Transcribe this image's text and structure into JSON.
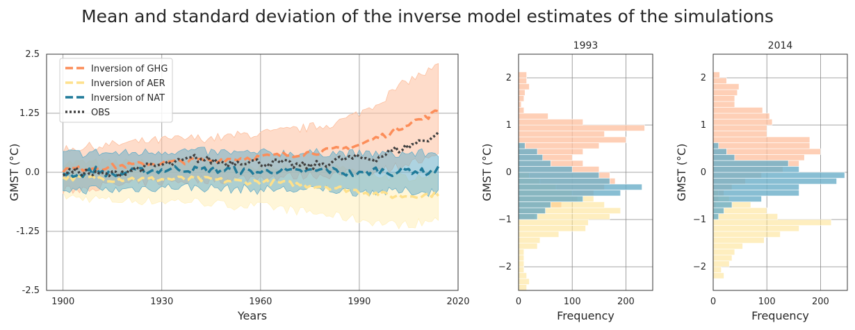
{
  "suptitle": "Mean and standard deviation of the inverse model estimates of the simulations",
  "colors": {
    "ghg": "#fc8d59",
    "ghg_band": "#fdbf9e",
    "aer": "#fee08b",
    "aer_band": "#fff0c0",
    "nat": "#1f7a99",
    "nat_band": "#6aaec8",
    "obs": "#404040",
    "grid": "#888888"
  },
  "chart_data": [
    {
      "type": "line",
      "title": "",
      "xlabel": "Years",
      "ylabel": "GMST (°C)",
      "xlim": [
        1895,
        2020
      ],
      "ylim": [
        -2.5,
        2.5
      ],
      "xticks": [
        1900,
        1930,
        1960,
        1990,
        2020
      ],
      "yticks": [
        2.5,
        1.25,
        0.0,
        -1.25,
        -2.5
      ],
      "ytick_labels": [
        "2.5",
        "1.25",
        "0.0",
        "-1.25",
        "-2.5"
      ],
      "grid": true,
      "legend_position": "top-left",
      "x": [
        1900,
        1905,
        1910,
        1915,
        1920,
        1925,
        1930,
        1935,
        1940,
        1945,
        1950,
        1955,
        1960,
        1965,
        1970,
        1975,
        1980,
        1985,
        1990,
        1995,
        2000,
        2005,
        2010,
        2014
      ],
      "series": [
        {
          "name": "Inversion of GHG",
          "style": "dashed",
          "key": "ghg",
          "values": [
            0.05,
            0.08,
            0.1,
            0.12,
            0.15,
            0.17,
            0.2,
            0.22,
            0.25,
            0.25,
            0.28,
            0.3,
            0.32,
            0.35,
            0.38,
            0.42,
            0.45,
            0.5,
            0.58,
            0.72,
            0.85,
            1.05,
            1.15,
            1.3
          ],
          "upper": [
            0.5,
            0.52,
            0.55,
            0.58,
            0.62,
            0.65,
            0.68,
            0.7,
            0.72,
            0.72,
            0.75,
            0.8,
            0.82,
            0.85,
            0.9,
            0.95,
            1.0,
            1.1,
            1.25,
            1.45,
            1.7,
            1.95,
            2.1,
            2.25
          ],
          "lower": [
            -0.4,
            -0.35,
            -0.3,
            -0.28,
            -0.25,
            -0.22,
            -0.2,
            -0.18,
            -0.16,
            -0.15,
            -0.15,
            -0.12,
            -0.1,
            -0.1,
            -0.08,
            -0.05,
            -0.05,
            -0.05,
            0.0,
            0.05,
            0.1,
            0.2,
            0.25,
            0.3
          ]
        },
        {
          "name": "Inversion of AER",
          "style": "dashed",
          "key": "aer",
          "values": [
            -0.1,
            -0.12,
            -0.12,
            -0.15,
            -0.13,
            -0.15,
            -0.15,
            -0.14,
            -0.15,
            -0.16,
            -0.18,
            -0.2,
            -0.2,
            -0.22,
            -0.25,
            -0.28,
            -0.3,
            -0.35,
            -0.4,
            -0.45,
            -0.5,
            -0.5,
            -0.48,
            -0.45
          ],
          "upper": [
            0.2,
            0.2,
            0.2,
            0.2,
            0.2,
            0.2,
            0.2,
            0.2,
            0.2,
            0.2,
            0.18,
            0.15,
            0.15,
            0.12,
            0.1,
            0.1,
            0.08,
            0.05,
            0.0,
            -0.05,
            -0.1,
            -0.1,
            -0.05,
            -0.05
          ],
          "lower": [
            -0.5,
            -0.55,
            -0.55,
            -0.6,
            -0.6,
            -0.6,
            -0.62,
            -0.6,
            -0.62,
            -0.65,
            -0.7,
            -0.7,
            -0.72,
            -0.75,
            -0.8,
            -0.85,
            -0.9,
            -0.95,
            -1.0,
            -1.05,
            -1.1,
            -1.1,
            -1.05,
            -1.0
          ]
        },
        {
          "name": "Inversion of NAT",
          "style": "dashed",
          "key": "nat",
          "values": [
            0.0,
            -0.05,
            0.05,
            -0.05,
            0.0,
            0.03,
            0.05,
            0.08,
            0.05,
            0.05,
            0.05,
            0.02,
            0.0,
            0.05,
            0.0,
            0.02,
            0.05,
            0.0,
            -0.05,
            0.05,
            0.0,
            0.05,
            0.0,
            0.05
          ],
          "upper": [
            0.4,
            0.4,
            0.42,
            0.4,
            0.4,
            0.42,
            0.45,
            0.45,
            0.45,
            0.42,
            0.42,
            0.4,
            0.4,
            0.42,
            0.4,
            0.4,
            0.42,
            0.4,
            0.38,
            0.4,
            0.38,
            0.4,
            0.4,
            0.42
          ],
          "lower": [
            -0.35,
            -0.38,
            -0.35,
            -0.38,
            -0.35,
            -0.33,
            -0.32,
            -0.3,
            -0.32,
            -0.33,
            -0.35,
            -0.35,
            -0.38,
            -0.35,
            -0.38,
            -0.38,
            -0.35,
            -0.4,
            -0.42,
            -0.4,
            -0.42,
            -0.4,
            -0.42,
            -0.4
          ]
        },
        {
          "name": "OBS",
          "style": "dotted",
          "key": "obs",
          "values": [
            0.0,
            0.02,
            -0.05,
            -0.05,
            0.05,
            0.1,
            0.15,
            0.2,
            0.3,
            0.25,
            0.2,
            0.25,
            0.2,
            0.2,
            0.15,
            0.12,
            0.2,
            0.28,
            0.3,
            0.3,
            0.45,
            0.55,
            0.7,
            0.8
          ]
        }
      ]
    },
    {
      "type": "bar",
      "orientation": "horizontal",
      "title": "1993",
      "xlabel": "Frequency",
      "ylabel": "GMST (°C)",
      "xlim": [
        0,
        250
      ],
      "ylim": [
        -2.5,
        2.5
      ],
      "xticks": [
        0,
        100,
        200
      ],
      "yticks": [
        2,
        1,
        0,
        -1,
        -2
      ],
      "grid": true,
      "bin_width": 0.125,
      "series": [
        {
          "name": "GHG",
          "key": "ghg",
          "bin_start": -1.0,
          "values": [
            30,
            50,
            80,
            110,
            140,
            160,
            180,
            170,
            150,
            120,
            100,
            120,
            150,
            200,
            160,
            235,
            120,
            55,
            10,
            5,
            10,
            12,
            20,
            15,
            15
          ]
        },
        {
          "name": "AER",
          "key": "aer",
          "bin_start": -2.5,
          "values": [
            15,
            20,
            15,
            10,
            10,
            10,
            10,
            35,
            40,
            75,
            125,
            130,
            170,
            190,
            160,
            140,
            100,
            70,
            40,
            20
          ]
        },
        {
          "name": "NAT",
          "key": "nat",
          "bin_start": -1.0,
          "values": [
            35,
            50,
            60,
            120,
            190,
            230,
            170,
            150,
            100,
            60,
            45,
            35,
            12
          ]
        }
      ]
    },
    {
      "type": "bar",
      "orientation": "horizontal",
      "title": "2014",
      "xlabel": "Frequency",
      "ylabel": "GMST (°C)",
      "xlim": [
        0,
        250
      ],
      "ylim": [
        -2.5,
        2.5
      ],
      "xticks": [
        0,
        100,
        200
      ],
      "yticks": [
        2,
        1,
        0,
        -1,
        -2
      ],
      "grid": true,
      "bin_width": 0.125,
      "series": [
        {
          "name": "GHG",
          "key": "ghg",
          "bin_start": -0.75,
          "values": [
            5,
            10,
            20,
            35,
            60,
            90,
            130,
            160,
            170,
            200,
            180,
            180,
            100,
            100,
            110,
            105,
            92,
            40,
            40,
            45,
            48,
            25,
            12
          ]
        },
        {
          "name": "AER",
          "key": "aer",
          "bin_start": -2.25,
          "values": [
            20,
            15,
            30,
            35,
            40,
            55,
            95,
            125,
            160,
            220,
            120,
            100,
            70,
            30,
            10
          ]
        },
        {
          "name": "NAT",
          "key": "nat",
          "bin_start": -1.0,
          "values": [
            10,
            20,
            35,
            90,
            160,
            160,
            230,
            245,
            160,
            140,
            40,
            25,
            10
          ]
        }
      ]
    }
  ]
}
